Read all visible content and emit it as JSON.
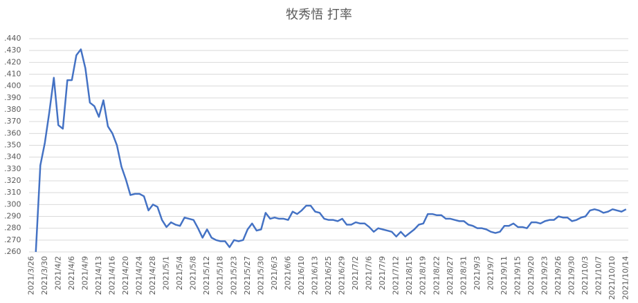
{
  "chart_data": {
    "type": "line",
    "title": "牧秀悟 打率",
    "categories": [
      "2021/3/26",
      null,
      null,
      "2021/3/30",
      null,
      null,
      "2021/4/2",
      null,
      null,
      "2021/4/6",
      null,
      null,
      "2021/4/9",
      null,
      null,
      "2021/4/13",
      null,
      null,
      "2021/4/16",
      null,
      null,
      "2021/4/20",
      null,
      null,
      "2021/4/24",
      null,
      null,
      "2021/4/28",
      null,
      null,
      "2021/5/1",
      null,
      null,
      "2021/5/4",
      null,
      null,
      "2021/5/8",
      null,
      null,
      "2021/5/12",
      null,
      null,
      "2021/5/18",
      null,
      null,
      "2021/5/23",
      null,
      null,
      "2021/5/27",
      null,
      null,
      "2021/5/30",
      null,
      null,
      "2021/6/3",
      null,
      null,
      "2021/6/6",
      null,
      null,
      "2021/6/10",
      null,
      null,
      "2021/6/13",
      null,
      null,
      "2021/6/25",
      null,
      null,
      "2021/6/29",
      null,
      null,
      "2021/7/2",
      null,
      null,
      "2021/7/6",
      null,
      null,
      "2021/7/9",
      null,
      null,
      "2021/7/12",
      null,
      null,
      "2021/8/15",
      null,
      null,
      "2021/8/19",
      null,
      null,
      "2021/8/22",
      null,
      null,
      "2021/8/27",
      null,
      null,
      "2021/8/31",
      null,
      null,
      "2021/9/3",
      null,
      null,
      "2021/9/7",
      null,
      null,
      "2021/9/11",
      null,
      null,
      "2021/9/15",
      null,
      null,
      "2021/9/20",
      null,
      null,
      "2021/9/23",
      null,
      null,
      "2021/9/26",
      null,
      null,
      "2021/9/30",
      null,
      null,
      "2021/10/3",
      null,
      null,
      "2021/10/7",
      null,
      null,
      "2021/10/10",
      null,
      null,
      "2021/10/14"
    ],
    "values": [
      null,
      0.26,
      0.333,
      0.352,
      0.378,
      0.407,
      0.367,
      0.364,
      0.405,
      0.405,
      0.426,
      0.431,
      0.415,
      0.386,
      0.383,
      0.374,
      0.388,
      0.366,
      0.36,
      0.35,
      0.332,
      0.321,
      0.308,
      0.309,
      0.309,
      0.307,
      0.295,
      0.3,
      0.298,
      0.287,
      0.281,
      0.285,
      0.283,
      0.282,
      0.289,
      0.288,
      0.287,
      0.28,
      0.272,
      0.279,
      0.272,
      0.27,
      0.269,
      0.269,
      0.264,
      0.27,
      0.269,
      0.27,
      0.279,
      0.284,
      0.278,
      0.279,
      0.293,
      0.288,
      0.289,
      0.288,
      0.288,
      0.287,
      0.294,
      0.292,
      0.295,
      0.299,
      0.299,
      0.294,
      0.293,
      0.288,
      0.287,
      0.287,
      0.286,
      0.288,
      0.283,
      0.283,
      0.285,
      0.284,
      0.284,
      0.281,
      0.277,
      0.28,
      0.279,
      0.278,
      0.277,
      0.273,
      0.277,
      0.273,
      0.276,
      0.279,
      0.283,
      0.284,
      0.292,
      0.292,
      0.291,
      0.291,
      0.288,
      0.288,
      0.287,
      0.286,
      0.286,
      0.283,
      0.282,
      0.28,
      0.28,
      0.279,
      0.277,
      0.276,
      0.277,
      0.282,
      0.282,
      0.284,
      0.281,
      0.281,
      0.28,
      0.285,
      0.285,
      0.284,
      0.286,
      0.287,
      0.287,
      0.29,
      0.289,
      0.289,
      0.286,
      0.287,
      0.289,
      0.29,
      0.295,
      0.296,
      0.295,
      0.293,
      0.294,
      0.296,
      0.295,
      0.294,
      0.296
    ],
    "color": "#4472c4",
    "ylim": [
      0.26,
      0.44
    ],
    "yticks": [
      {
        "value": 0.26,
        "label": ".260"
      },
      {
        "value": 0.27,
        "label": ".270"
      },
      {
        "value": 0.28,
        "label": ".280"
      },
      {
        "value": 0.29,
        "label": ".290"
      },
      {
        "value": 0.3,
        "label": ".300"
      },
      {
        "value": 0.31,
        "label": ".310"
      },
      {
        "value": 0.32,
        "label": ".320"
      },
      {
        "value": 0.33,
        "label": ".330"
      },
      {
        "value": 0.34,
        "label": ".340"
      },
      {
        "value": 0.35,
        "label": ".350"
      },
      {
        "value": 0.36,
        "label": ".360"
      },
      {
        "value": 0.37,
        "label": ".370"
      },
      {
        "value": 0.38,
        "label": ".380"
      },
      {
        "value": 0.39,
        "label": ".390"
      },
      {
        "value": 0.4,
        "label": ".400"
      },
      {
        "value": 0.41,
        "label": ".410"
      },
      {
        "value": 0.42,
        "label": ".420"
      },
      {
        "value": 0.43,
        "label": ".430"
      },
      {
        "value": 0.44,
        "label": ".440"
      }
    ],
    "grid": true
  }
}
